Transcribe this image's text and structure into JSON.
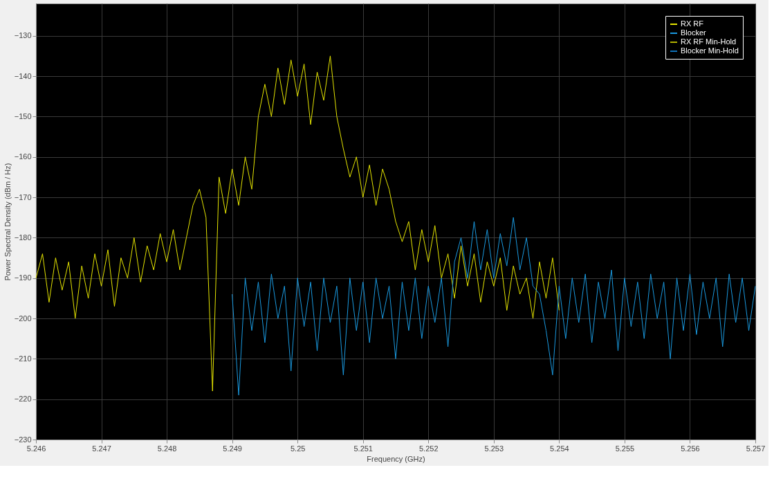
{
  "chart_data": {
    "type": "line",
    "xlabel": "Frequency (GHz)",
    "ylabel": "Power Spectral Density (dBm / Hz)",
    "xlim": [
      5.246,
      5.257
    ],
    "xticks": [
      5.246,
      5.247,
      5.248,
      5.249,
      5.25,
      5.251,
      5.252,
      5.253,
      5.254,
      5.255,
      5.256,
      5.257
    ],
    "ylim": [
      -230,
      -122
    ],
    "yticks": [
      -230,
      -220,
      -210,
      -200,
      -190,
      -180,
      -170,
      -160,
      -150,
      -140,
      -130
    ],
    "grid": true,
    "legend": "top right",
    "line_style": "solid",
    "series": [
      {
        "name": "RX RF",
        "color": "#e6e600",
        "x": [
          5.246,
          5.2461,
          5.2462,
          5.2463,
          5.2464,
          5.2465,
          5.2466,
          5.2467,
          5.2468,
          5.2469,
          5.247,
          5.2471,
          5.2472,
          5.2473,
          5.2474,
          5.2475,
          5.2476,
          5.2477,
          5.2478,
          5.2479,
          5.248,
          5.2481,
          5.2482,
          5.2483,
          5.2484,
          5.2485,
          5.2486,
          5.2487,
          5.2488,
          5.2489,
          5.249,
          5.2491,
          5.2492,
          5.2493,
          5.2494,
          5.2495,
          5.2496,
          5.2497,
          5.2498,
          5.2499,
          5.25,
          5.2501,
          5.2502,
          5.2503,
          5.2504,
          5.2505,
          5.2506,
          5.2507,
          5.2508,
          5.2509,
          5.251,
          5.2511,
          5.2512,
          5.2513,
          5.2514,
          5.2515,
          5.2516,
          5.2517,
          5.2518,
          5.2519,
          5.252,
          5.2521,
          5.2522,
          5.2523,
          5.2524,
          5.2525,
          5.2526,
          5.2527,
          5.2528,
          5.2529,
          5.253,
          5.2531,
          5.2532,
          5.2533,
          5.2534,
          5.2535,
          5.2536,
          5.2537,
          5.2538,
          5.2539,
          5.254
        ],
        "values": [
          -190,
          -184,
          -196,
          -185,
          -193,
          -186,
          -200,
          -187,
          -195,
          -184,
          -192,
          -183,
          -197,
          -185,
          -190,
          -180,
          -191,
          -182,
          -188,
          -179,
          -186,
          -178,
          -188,
          -180,
          -172,
          -168,
          -175,
          -218,
          -165,
          -174,
          -163,
          -172,
          -160,
          -168,
          -150,
          -142,
          -150,
          -138,
          -147,
          -136,
          -145,
          -137,
          -152,
          -139,
          -146,
          -135,
          -150,
          -158,
          -165,
          -160,
          -170,
          -162,
          -172,
          -163,
          -168,
          -176,
          -181,
          -176,
          -188,
          -178,
          -186,
          -177,
          -190,
          -184,
          -195,
          -182,
          -192,
          -184,
          -196,
          -186,
          -192,
          -185,
          -198,
          -187,
          -194,
          -190,
          -200,
          -186,
          -195,
          -185,
          -198
        ]
      },
      {
        "name": "Blocker",
        "color": "#1a9ae0",
        "x": [
          5.249,
          5.2491,
          5.2492,
          5.2493,
          5.2494,
          5.2495,
          5.2496,
          5.2497,
          5.2498,
          5.2499,
          5.25,
          5.2501,
          5.2502,
          5.2503,
          5.2504,
          5.2505,
          5.2506,
          5.2507,
          5.2508,
          5.2509,
          5.251,
          5.2511,
          5.2512,
          5.2513,
          5.2514,
          5.2515,
          5.2516,
          5.2517,
          5.2518,
          5.2519,
          5.252,
          5.2521,
          5.2522,
          5.2523,
          5.2524,
          5.2525,
          5.2526,
          5.2527,
          5.2528,
          5.2529,
          5.253,
          5.2531,
          5.2532,
          5.2533,
          5.2534,
          5.2535,
          5.2536,
          5.2537,
          5.2538,
          5.2539,
          5.254,
          5.2541,
          5.2542,
          5.2543,
          5.2544,
          5.2545,
          5.2546,
          5.2547,
          5.2548,
          5.2549,
          5.255,
          5.2551,
          5.2552,
          5.2553,
          5.2554,
          5.2555,
          5.2556,
          5.2557,
          5.2558,
          5.2559,
          5.256,
          5.2561,
          5.2562,
          5.2563,
          5.2564,
          5.2565,
          5.2566,
          5.2567,
          5.2568,
          5.2569,
          5.257
        ],
        "values": [
          -194,
          -219,
          -190,
          -203,
          -191,
          -206,
          -189,
          -200,
          -192,
          -213,
          -190,
          -202,
          -191,
          -208,
          -190,
          -201,
          -192,
          -214,
          -190,
          -203,
          -191,
          -206,
          -190,
          -200,
          -192,
          -210,
          -191,
          -203,
          -190,
          -205,
          -192,
          -201,
          -190,
          -207,
          -186,
          -180,
          -190,
          -176,
          -188,
          -178,
          -190,
          -179,
          -187,
          -175,
          -188,
          -180,
          -192,
          -194,
          -203,
          -214,
          -192,
          -205,
          -190,
          -201,
          -189,
          -206,
          -191,
          -200,
          -188,
          -208,
          -190,
          -202,
          -191,
          -205,
          -189,
          -200,
          -191,
          -210,
          -190,
          -203,
          -189,
          -204,
          -191,
          -200,
          -190,
          -207,
          -189,
          -201,
          -190,
          -203,
          -192
        ]
      },
      {
        "name": "RX RF Min-Hold",
        "color": "#b3b300"
      },
      {
        "name": "Blocker Min-Hold",
        "color": "#0f72b8"
      }
    ]
  }
}
